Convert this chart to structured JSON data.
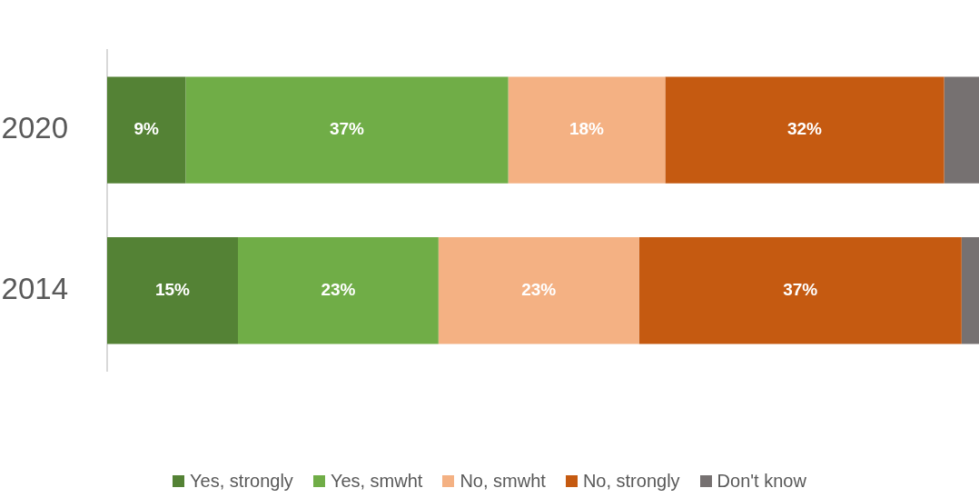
{
  "chart_data": {
    "type": "bar",
    "orientation": "horizontal",
    "stacked": true,
    "categories": [
      "2020",
      "2014"
    ],
    "xlim": [
      0,
      100
    ],
    "tick_labels": "y",
    "legend": "bottom",
    "series": [
      {
        "name": "Yes, strongly",
        "color": "#548235",
        "values": [
          9,
          15
        ],
        "value_labels": [
          "9%",
          "15%"
        ]
      },
      {
        "name": "Yes, smwht",
        "color": "#70ad47",
        "values": [
          37,
          23
        ],
        "value_labels": [
          "37%",
          "23%"
        ]
      },
      {
        "name": "No, smwht",
        "color": "#f4b183",
        "values": [
          18,
          23
        ],
        "value_labels": [
          "18%",
          "23%"
        ]
      },
      {
        "name": "No, strongly",
        "color": "#c55a11",
        "values": [
          32,
          37
        ],
        "value_labels": [
          "32%",
          "37%"
        ]
      },
      {
        "name": "Don't know",
        "color": "#767171",
        "values": [
          4,
          2
        ]
      }
    ]
  }
}
